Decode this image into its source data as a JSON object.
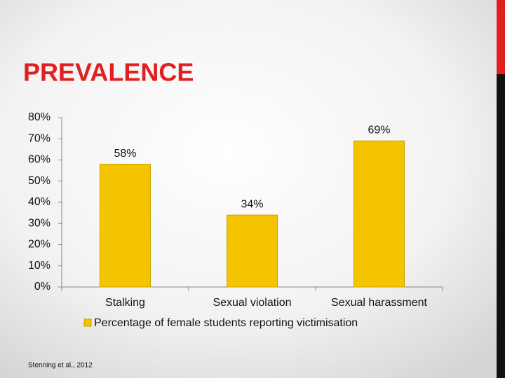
{
  "title": "PREVALENCE",
  "source": "Stenning et al., 2012",
  "chart_data": {
    "type": "bar",
    "categories": [
      "Stalking",
      "Sexual violation",
      "Sexual harassment"
    ],
    "series": [
      {
        "name": "Percentage of female students reporting victimisation",
        "color": "#f5c400",
        "values": [
          58,
          34,
          69
        ],
        "value_labels": [
          "58%",
          "34%",
          "69%"
        ]
      }
    ],
    "ylim": [
      0,
      80
    ],
    "yticks": [
      {
        "value": 0,
        "label": "0%"
      },
      {
        "value": 10,
        "label": "10%"
      },
      {
        "value": 20,
        "label": "20%"
      },
      {
        "value": 30,
        "label": "30%"
      },
      {
        "value": 40,
        "label": "40%"
      },
      {
        "value": 50,
        "label": "50%"
      },
      {
        "value": 60,
        "label": "60%"
      },
      {
        "value": 70,
        "label": "70%"
      },
      {
        "value": 80,
        "label": "80%"
      }
    ],
    "legend": "bottom"
  }
}
